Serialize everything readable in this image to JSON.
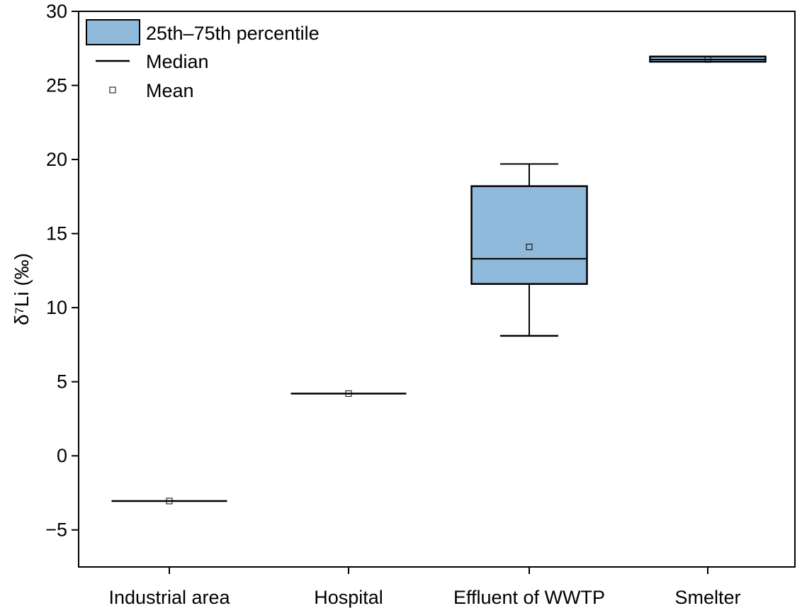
{
  "chart_data": {
    "type": "box",
    "title": "",
    "xlabel": "",
    "ylabel": "δ⁷Li (‰)",
    "ylim": [
      -7.5,
      30
    ],
    "yticks": [
      -5,
      0,
      5,
      10,
      15,
      20,
      25,
      30
    ],
    "categories": [
      "Industrial area",
      "Hospital",
      "Effluent of WWTP",
      "Smelter"
    ],
    "boxes": [
      {
        "category": "Industrial area",
        "whisker_low": -3.05,
        "q1": -3.05,
        "median": -3.05,
        "q3": -3.05,
        "whisker_high": -3.05,
        "mean": -3.05
      },
      {
        "category": "Hospital",
        "whisker_low": 4.2,
        "q1": 4.2,
        "median": 4.2,
        "q3": 4.2,
        "whisker_high": 4.2,
        "mean": 4.2
      },
      {
        "category": "Effluent of WWTP",
        "whisker_low": 8.1,
        "q1": 11.6,
        "median": 13.3,
        "q3": 18.2,
        "whisker_high": 19.7,
        "mean": 14.1
      },
      {
        "category": "Smelter",
        "whisker_low": 26.6,
        "q1": 26.6,
        "median": 26.75,
        "q3": 26.95,
        "whisker_high": 26.95,
        "mean": 26.75
      }
    ],
    "legend": {
      "placement": "top-left",
      "entries": [
        "25th–75th percentile",
        "Median",
        "Mean"
      ]
    },
    "grid": false,
    "colors": {
      "box_fill": "#8fbadb",
      "line": "#000000"
    }
  }
}
